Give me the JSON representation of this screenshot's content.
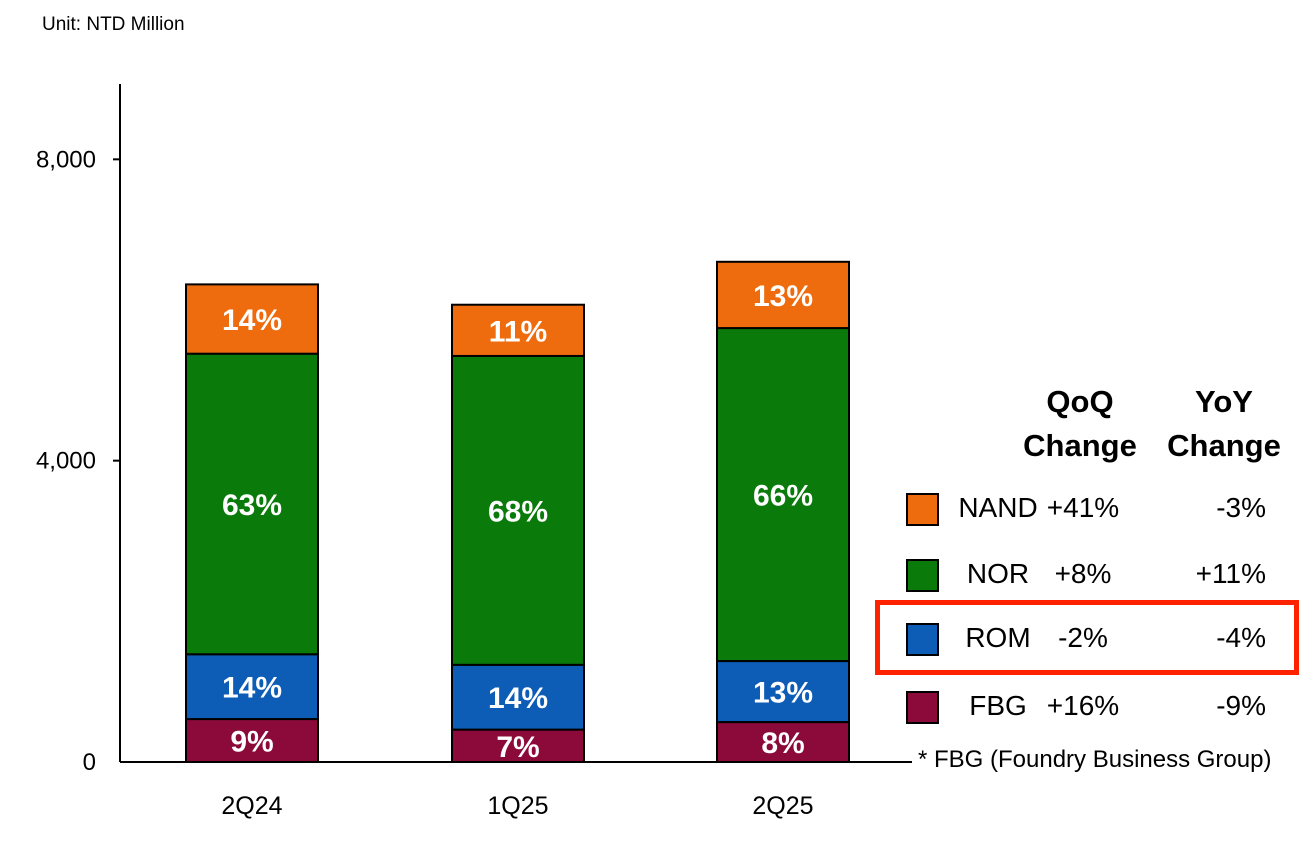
{
  "unit_label": "Unit: NTD Million",
  "chart_data": {
    "type": "bar",
    "stacked": true,
    "categories": [
      "2Q24",
      "1Q25",
      "2Q25"
    ],
    "ylim": [
      0,
      9000
    ],
    "yticks": [
      0,
      4000,
      8000
    ],
    "ytick_labels": [
      "0",
      "4,000",
      "8,000"
    ],
    "series": [
      {
        "name": "FBG",
        "color": "#8b0a3a",
        "values": [
          570,
          430,
          530
        ],
        "labels": [
          "9%",
          "7%",
          "8%"
        ]
      },
      {
        "name": "ROM",
        "color": "#0d5cb6",
        "values": [
          860,
          860,
          810
        ],
        "labels": [
          "14%",
          "14%",
          "13%"
        ]
      },
      {
        "name": "NOR",
        "color": "#0a7a0a",
        "values": [
          3990,
          4100,
          4420
        ],
        "labels": [
          "63%",
          "68%",
          "66%"
        ]
      },
      {
        "name": "NAND",
        "color": "#ef6c0e",
        "values": [
          920,
          680,
          880
        ],
        "labels": [
          "14%",
          "11%",
          "13%"
        ]
      }
    ]
  },
  "table": {
    "qoq_header": [
      "QoQ",
      "Change"
    ],
    "yoy_header": [
      "YoY",
      "Change"
    ],
    "rows": [
      {
        "name": "NAND",
        "color": "#ef6c0e",
        "qoq": "+41%",
        "yoy": "-3%"
      },
      {
        "name": "NOR",
        "color": "#0a7a0a",
        "qoq": "+8%",
        "yoy": "+11%"
      },
      {
        "name": "ROM",
        "color": "#0d5cb6",
        "qoq": "-2%",
        "yoy": "-4%",
        "highlighted": true
      },
      {
        "name": "FBG",
        "color": "#8b0a3a",
        "qoq": "+16%",
        "yoy": "-9%"
      }
    ]
  },
  "footnote": "* FBG (Foundry Business Group)"
}
